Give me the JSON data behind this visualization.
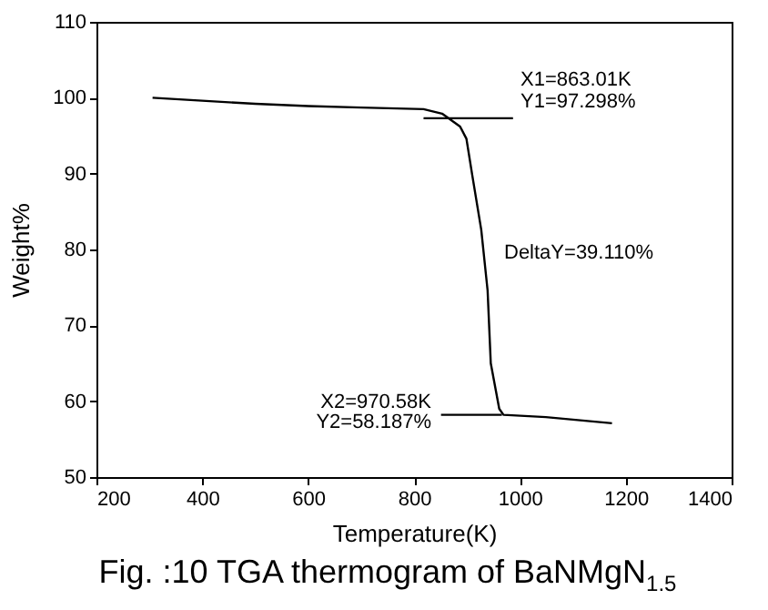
{
  "chart_data": {
    "type": "line",
    "title": "Fig. :10 TGA thermogram of BaNMgN$_{1.5}$",
    "xlabel": "Temperature(K)",
    "ylabel": "Weight%",
    "xlim": [
      200,
      1400
    ],
    "xticks": [
      200,
      400,
      600,
      800,
      1000,
      1200,
      1400
    ],
    "ylim": [
      50,
      110
    ],
    "yticks": [
      50,
      60,
      70,
      80,
      90,
      100,
      110
    ],
    "grid": false,
    "series": [
      {
        "color": "#000000",
        "x": [
          306,
          400,
          500,
          600,
          700,
          818,
          853,
          887,
          899,
          910,
          927,
          939,
          945,
          961,
          969,
          1049,
          1174
        ],
        "values": [
          100.0,
          99.6,
          99.2,
          98.9,
          98.7,
          98.5,
          97.9,
          96.2,
          94.6,
          89.8,
          82.6,
          74.6,
          65.0,
          59.0,
          58.2,
          57.9,
          57.1
        ]
      },
      {
        "type": "line",
        "color": "#000000",
        "x": [
          818,
          987
        ],
        "values": [
          97.3,
          97.3
        ]
      },
      {
        "type": "line",
        "color": "#000000",
        "x": [
          851,
          966
        ],
        "values": [
          58.2,
          58.2
        ]
      }
    ],
    "annotations": [
      "X1=863.01K",
      "Y1=97.298%",
      "DeltaY=39.110%",
      "X2=970.58K",
      "Y2=58.187%"
    ]
  }
}
